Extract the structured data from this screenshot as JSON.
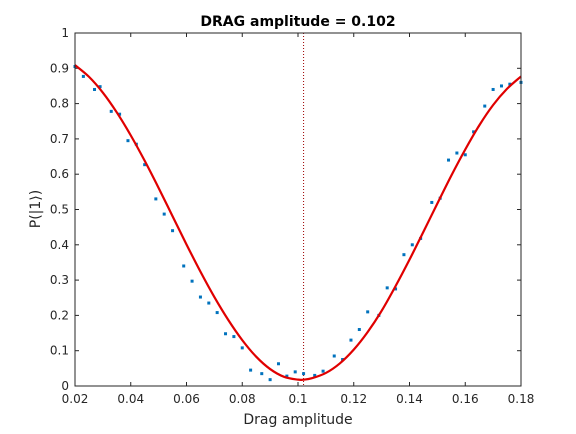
{
  "chart_data": {
    "type": "scatter",
    "title": "DRAG amplitude = 0.102",
    "xlabel": "Drag amplitude",
    "ylabel": "P(|1⟩)",
    "xlim": [
      0.02,
      0.18
    ],
    "ylim": [
      0,
      1
    ],
    "xticks": [
      "0.02",
      "0.04",
      "0.06",
      "0.08",
      "0.1",
      "0.12",
      "0.14",
      "0.16",
      "0.18"
    ],
    "yticks": [
      "0",
      "0.1",
      "0.2",
      "0.3",
      "0.4",
      "0.5",
      "0.6",
      "0.7",
      "0.8",
      "0.9",
      "1"
    ],
    "grid": false,
    "marker_line_x": 0.102,
    "colors": {
      "points": "#0072bd",
      "fit": "#e00000",
      "marker_line": "#a00000",
      "axes": "#262626"
    },
    "series": [
      {
        "kind": "points",
        "x": [
          0.02,
          0.023,
          0.027,
          0.029,
          0.033,
          0.036,
          0.039,
          0.042,
          0.045,
          0.049,
          0.052,
          0.055,
          0.059,
          0.062,
          0.065,
          0.068,
          0.071,
          0.074,
          0.077,
          0.08,
          0.083,
          0.087,
          0.09,
          0.093,
          0.096,
          0.099,
          0.102,
          0.106,
          0.109,
          0.113,
          0.116,
          0.119,
          0.122,
          0.125,
          0.129,
          0.132,
          0.135,
          0.138,
          0.141,
          0.144,
          0.148,
          0.151,
          0.154,
          0.157,
          0.16,
          0.163,
          0.167,
          0.17,
          0.173,
          0.176,
          0.18
        ],
        "y": [
          0.905,
          0.877,
          0.84,
          0.848,
          0.778,
          0.77,
          0.695,
          0.685,
          0.627,
          0.53,
          0.487,
          0.44,
          0.34,
          0.297,
          0.252,
          0.235,
          0.208,
          0.148,
          0.14,
          0.108,
          0.045,
          0.035,
          0.018,
          0.063,
          0.028,
          0.04,
          0.035,
          0.03,
          0.042,
          0.085,
          0.075,
          0.13,
          0.16,
          0.21,
          0.2,
          0.278,
          0.275,
          0.372,
          0.4,
          0.418,
          0.52,
          0.532,
          0.64,
          0.66,
          0.655,
          0.72,
          0.793,
          0.84,
          0.85,
          0.855,
          0.86
        ]
      },
      {
        "kind": "fit",
        "x": [
          0.02,
          0.025,
          0.03,
          0.035,
          0.04,
          0.045,
          0.05,
          0.055,
          0.06,
          0.065,
          0.07,
          0.075,
          0.08,
          0.085,
          0.09,
          0.095,
          0.1,
          0.102,
          0.105,
          0.11,
          0.115,
          0.12,
          0.125,
          0.13,
          0.135,
          0.14,
          0.145,
          0.15,
          0.155,
          0.16,
          0.165,
          0.17,
          0.175,
          0.18
        ],
        "y": [
          0.909,
          0.876,
          0.831,
          0.775,
          0.71,
          0.638,
          0.561,
          0.481,
          0.401,
          0.324,
          0.252,
          0.187,
          0.13,
          0.083,
          0.048,
          0.026,
          0.018,
          0.018,
          0.022,
          0.037,
          0.064,
          0.103,
          0.153,
          0.213,
          0.283,
          0.358,
          0.437,
          0.517,
          0.596,
          0.67,
          0.738,
          0.796,
          0.842,
          0.877
        ]
      }
    ]
  }
}
